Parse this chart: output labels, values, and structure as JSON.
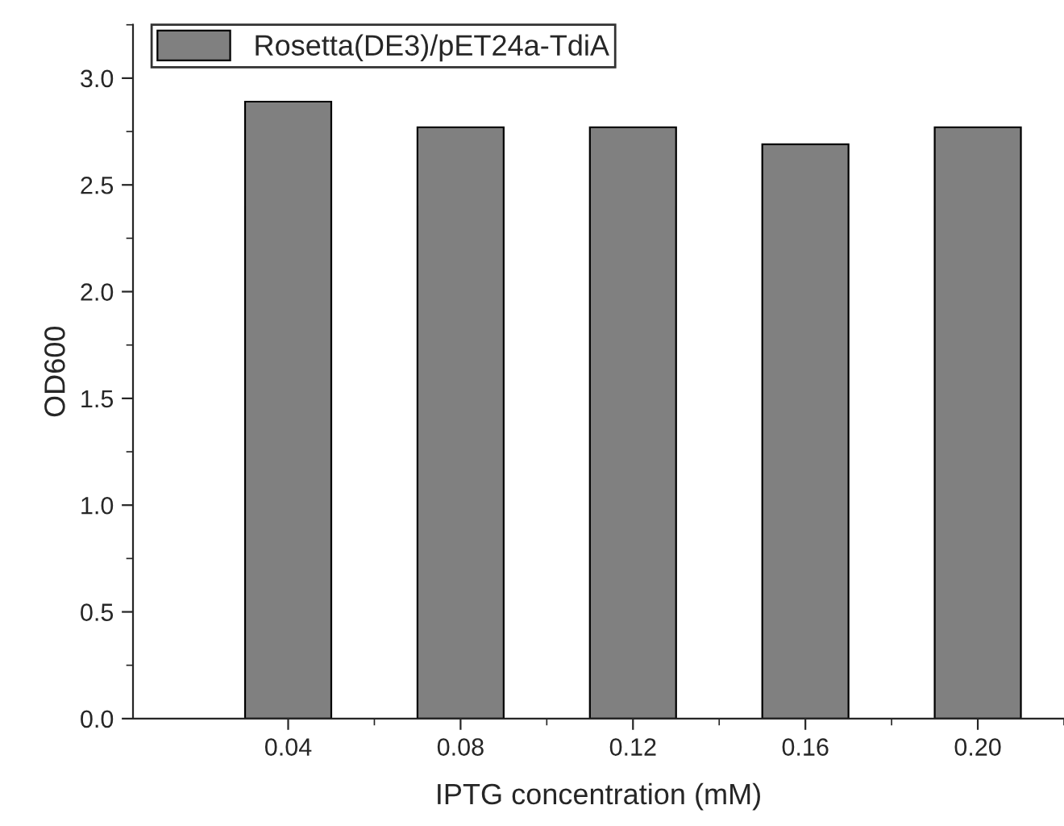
{
  "chart_data": {
    "type": "bar",
    "xlabel": "IPTG concentration (mM)",
    "ylabel": "OD600",
    "categories": [
      "0.04",
      "0.08",
      "0.12",
      "0.16",
      "0.20"
    ],
    "series": [
      {
        "name": "Rosetta(DE3)/pET24a-TdiA",
        "color": "#808080",
        "values": [
          2.89,
          2.77,
          2.77,
          2.69,
          2.77
        ]
      }
    ],
    "ylim": [
      0,
      3.25
    ],
    "yticks": [
      {
        "value": 0,
        "label": "0.0"
      },
      0.5,
      {
        "value": 1,
        "label": "1.0"
      },
      1.5,
      {
        "value": 2,
        "label": "2.0"
      },
      2.5,
      {
        "value": 3,
        "label": "3.0"
      }
    ],
    "legend": "top left",
    "grid": false
  }
}
